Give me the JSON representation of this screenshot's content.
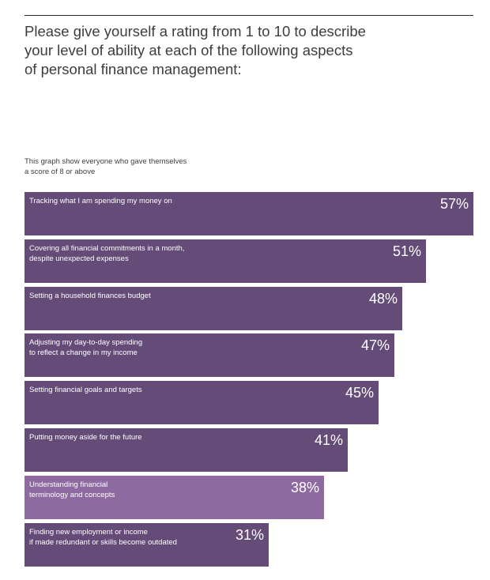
{
  "header": {
    "title": "Please give yourself a rating from 1 to 10 to describe\nyour level of ability at each of the following aspects\nof personal finance management:",
    "note": "This graph show everyone who gave themselves\na score of 8 or above"
  },
  "colors": {
    "bar": "#644b78",
    "highlight": "#8f6aa0"
  },
  "chart_data": {
    "type": "bar",
    "orientation": "horizontal",
    "unit": "%",
    "xlim": [
      0,
      57
    ],
    "categories": [
      "Tracking what I am spending my money on",
      "Covering all financial commitments in a month,\ndespite unexpected expenses",
      "Setting a household finances budget",
      "Adjusting my day-to-day spending\nto reflect a change in my income",
      "Setting financial goals and targets",
      "Putting money aside for the future",
      "Understanding financial\nterminology and concepts",
      "Finding new employment or income\nif made redundant or skills become outdated"
    ],
    "values": [
      57,
      51,
      48,
      47,
      45,
      41,
      38,
      31
    ],
    "value_labels": [
      "57%",
      "51%",
      "48%",
      "47%",
      "45%",
      "41%",
      "38%",
      "31%"
    ],
    "highlighted": [
      "Understanding financial\nterminology and concepts"
    ]
  }
}
